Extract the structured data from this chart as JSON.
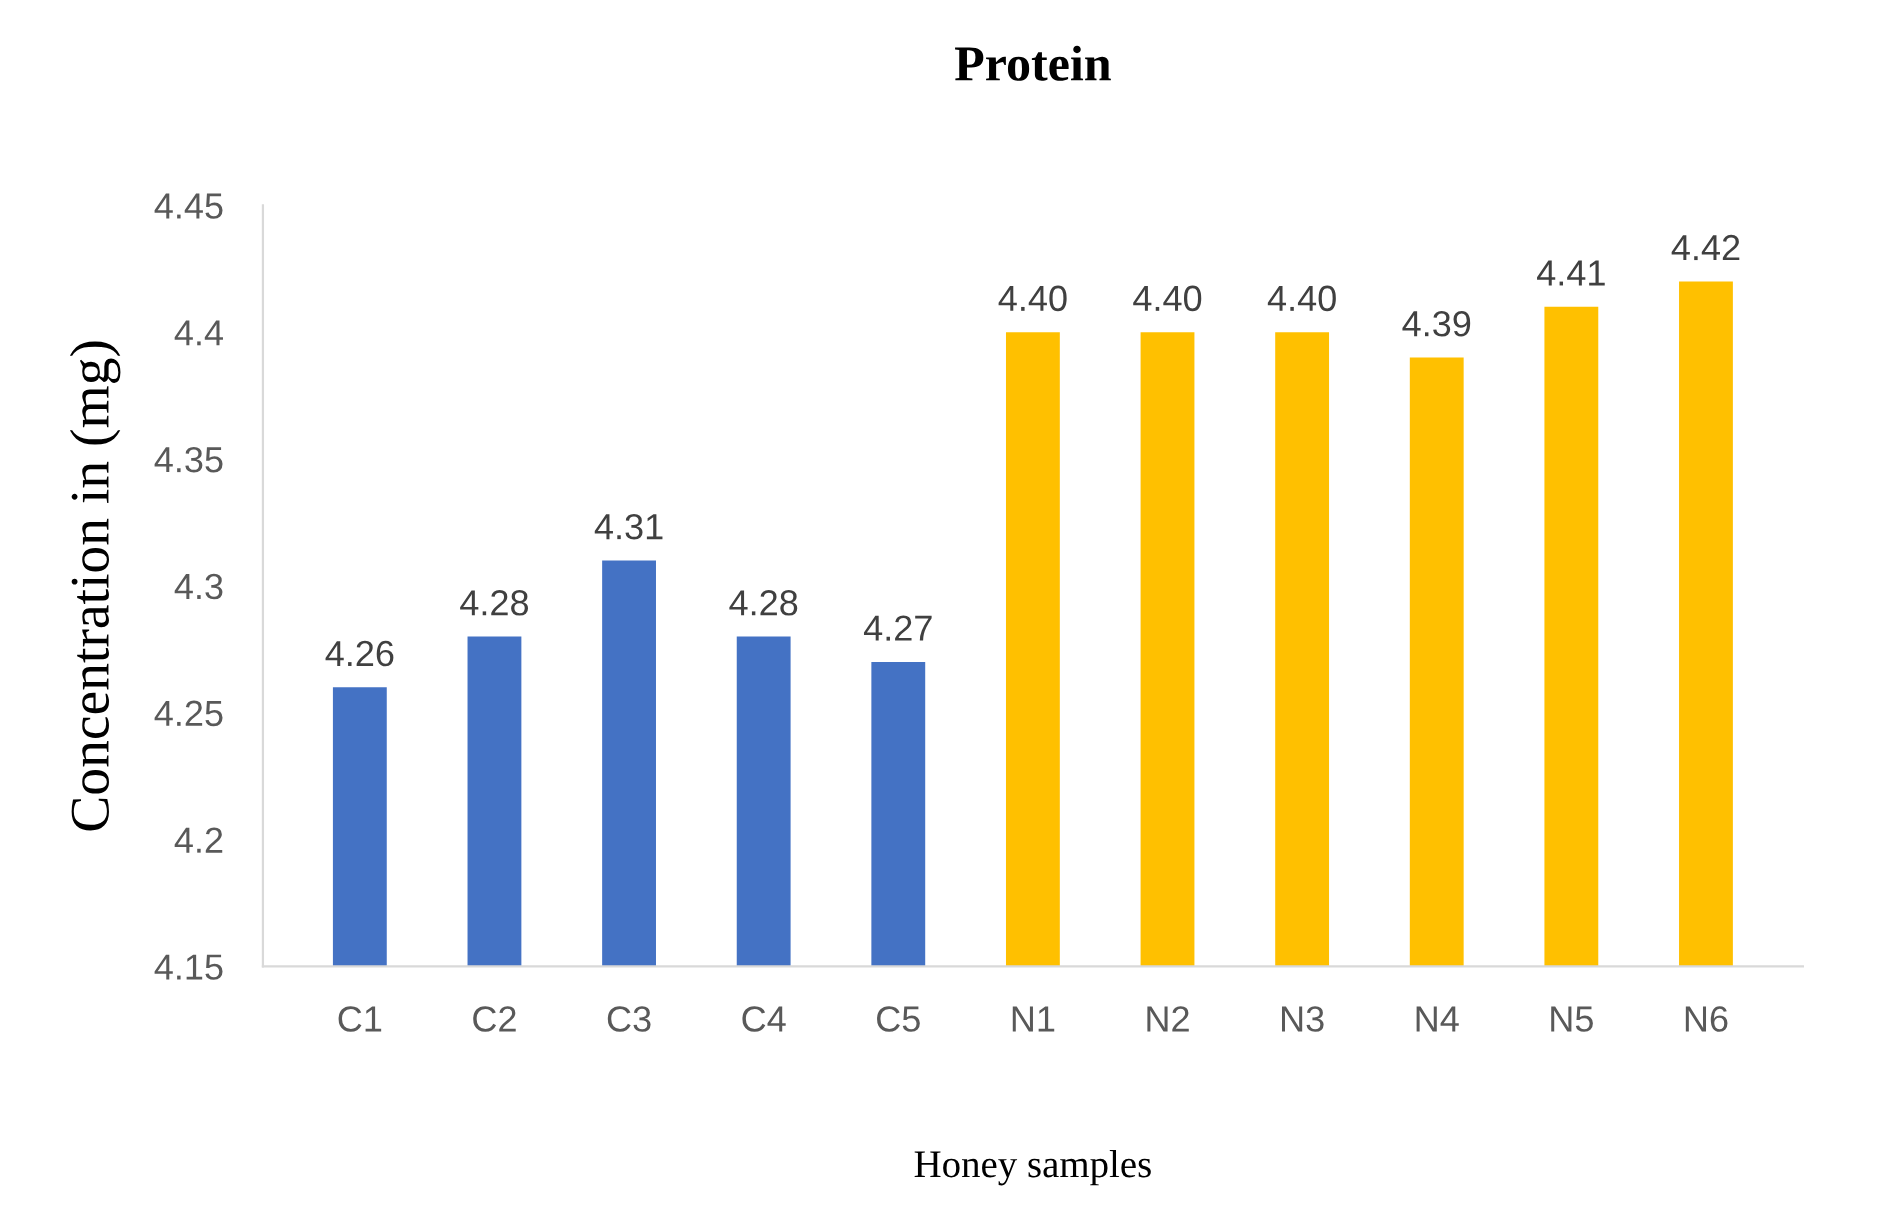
{
  "chart_data": {
    "type": "bar",
    "title": "Protein",
    "xlabel": "Honey samples",
    "ylabel": "Concentration in (mg)",
    "categories": [
      "C1",
      "C2",
      "C3",
      "C4",
      "C5",
      "N1",
      "N2",
      "N3",
      "N4",
      "N5",
      "N6"
    ],
    "values": [
      4.26,
      4.28,
      4.31,
      4.28,
      4.27,
      4.4,
      4.4,
      4.4,
      4.39,
      4.41,
      4.42
    ],
    "value_labels": [
      "4.26",
      "4.28",
      "4.31",
      "4.28",
      "4.27",
      "4.40",
      "4.40",
      "4.40",
      "4.39",
      "4.41",
      "4.42"
    ],
    "colors": [
      "#4472c4",
      "#4472c4",
      "#4472c4",
      "#4472c4",
      "#4472c4",
      "#ffc000",
      "#ffc000",
      "#ffc000",
      "#ffc000",
      "#ffc000",
      "#ffc000"
    ],
    "ylim": [
      4.15,
      4.45
    ],
    "yticks": [
      4.15,
      4.2,
      4.25,
      4.3,
      4.35,
      4.4,
      4.45
    ],
    "grid": false,
    "legend": false
  }
}
